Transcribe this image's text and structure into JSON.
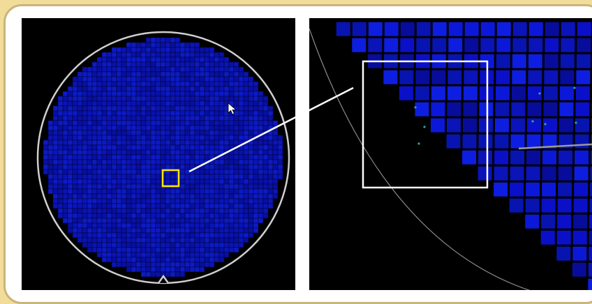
{
  "colors": {
    "page_background": "#f2dc9a",
    "frame": "#ffffff",
    "frame_border": "#c9b57a",
    "panel_background": "#000000",
    "die_primary": "#0a14b4",
    "die_dark": "#05086e",
    "grid_line": "#000000",
    "wafer_edge": "#d0d0d0",
    "selection_box": "#ffe600",
    "zoom_box": "#ffffff",
    "callout_line": "#ffffff",
    "defect": "#2aa7a0"
  },
  "icons": {
    "cursor": "mouse-pointer-arrow-icon",
    "notch": "wafer-notch-icon"
  }
}
